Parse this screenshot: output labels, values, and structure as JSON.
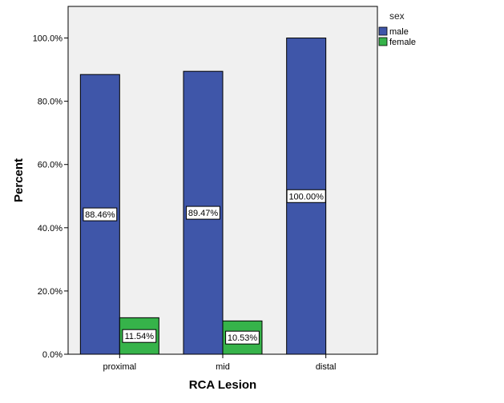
{
  "chart_data": {
    "type": "bar",
    "xlabel": "RCA Lesion",
    "ylabel": "Percent",
    "categories": [
      "proximal",
      "mid",
      "distal"
    ],
    "ylim": [
      0,
      110
    ],
    "yticks": [
      0,
      20,
      40,
      60,
      80,
      100
    ],
    "ytick_labels": [
      "0.0%",
      "20.0%",
      "40.0%",
      "60.0%",
      "80.0%",
      "100.0%"
    ],
    "legend_title": "sex",
    "legend_position": "right",
    "grid": false,
    "series": [
      {
        "name": "male",
        "color": "#3f56a9",
        "values": [
          88.46,
          89.47,
          100.0
        ],
        "labels": [
          "88.46%",
          "89.47%",
          "100.00%"
        ]
      },
      {
        "name": "female",
        "color": "#36b34a",
        "values": [
          11.54,
          10.53,
          null
        ],
        "labels": [
          "11.54%",
          "10.53%",
          ""
        ]
      }
    ]
  }
}
